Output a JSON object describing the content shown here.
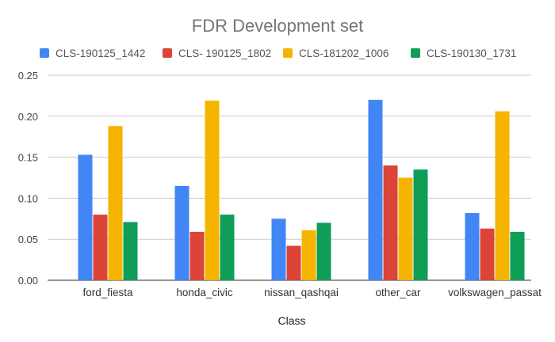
{
  "chart_data": {
    "type": "bar",
    "title": "FDR Development set",
    "xlabel": "Class",
    "ylabel": "",
    "ylim": [
      0,
      0.25
    ],
    "yticks": [
      "0.00",
      "0.05",
      "0.10",
      "0.15",
      "0.20",
      "0.25"
    ],
    "grid": true,
    "legend_position": "top",
    "categories": [
      "ford_fiesta",
      "honda_civic",
      "nissan_qashqai",
      "other_car",
      "volkswagen_passat"
    ],
    "series": [
      {
        "name": "CLS-190125_1442",
        "color": "#4285f4",
        "values": [
          0.153,
          0.115,
          0.075,
          0.22,
          0.082
        ]
      },
      {
        "name": "CLS- 190125_1802",
        "color": "#db4437",
        "values": [
          0.08,
          0.059,
          0.042,
          0.14,
          0.063
        ]
      },
      {
        "name": "CLS-181202_1006",
        "color": "#f4b400",
        "values": [
          0.188,
          0.219,
          0.061,
          0.125,
          0.206
        ]
      },
      {
        "name": "CLS-190130_1731",
        "color": "#0f9d58",
        "values": [
          0.071,
          0.08,
          0.07,
          0.135,
          0.059
        ]
      }
    ]
  }
}
